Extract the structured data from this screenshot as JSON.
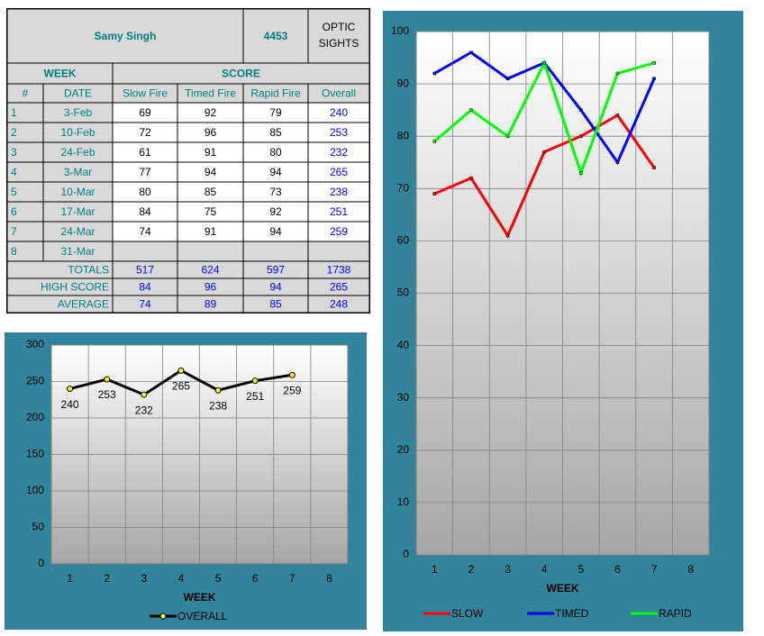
{
  "table": {
    "name": "Samy Singh",
    "id": "4453",
    "sights": "OPTIC SIGHTS",
    "group_headers": [
      "WEEK",
      "SCORE"
    ],
    "columns": [
      "#",
      "DATE",
      "Slow Fire",
      "Timed Fire",
      "Rapid Fire",
      "Overall"
    ],
    "rows": [
      [
        1,
        "3-Feb",
        69,
        92,
        79,
        240
      ],
      [
        2,
        "10-Feb",
        72,
        96,
        85,
        253
      ],
      [
        3,
        "24-Feb",
        61,
        91,
        80,
        232
      ],
      [
        4,
        "3-Mar",
        77,
        94,
        94,
        265
      ],
      [
        5,
        "10-Mar",
        80,
        85,
        73,
        238
      ],
      [
        6,
        "17-Mar",
        84,
        75,
        92,
        251
      ],
      [
        7,
        "24-Mar",
        74,
        91,
        94,
        259
      ],
      [
        8,
        "31-Mar"
      ]
    ],
    "summary": [
      [
        "TOTALS",
        517,
        624,
        597,
        1738
      ],
      [
        "HIGH SCORE",
        84,
        96,
        94,
        265
      ],
      [
        "AVERAGE",
        74,
        89,
        85,
        248
      ]
    ]
  },
  "chart_data": [
    {
      "type": "line",
      "xlabel": "WEEK",
      "categories": [
        1,
        2,
        3,
        4,
        5,
        6,
        7,
        8
      ],
      "series": [
        {
          "name": "OVERALL",
          "color": "#000000",
          "marker_color": "#ffff00",
          "values": [
            240,
            253,
            232,
            265,
            238,
            251,
            259,
            null
          ]
        }
      ],
      "data_labels": true,
      "ylim": [
        0,
        300
      ],
      "yticks": [
        0,
        50,
        100,
        150,
        200,
        250,
        300
      ],
      "grid": true
    },
    {
      "type": "line",
      "xlabel": "WEEK",
      "categories": [
        1,
        2,
        3,
        4,
        5,
        6,
        7,
        8
      ],
      "series": [
        {
          "name": "SLOW",
          "color": "#ff0000",
          "values": [
            69,
            72,
            61,
            77,
            80,
            84,
            74,
            null
          ]
        },
        {
          "name": "TIMED",
          "color": "#0000ff",
          "values": [
            92,
            96,
            91,
            94,
            85,
            75,
            91,
            null
          ]
        },
        {
          "name": "RAPID",
          "color": "#00ff00",
          "values": [
            79,
            85,
            80,
            94,
            73,
            92,
            94,
            null
          ]
        }
      ],
      "data_labels": false,
      "ylim": [
        0,
        100
      ],
      "yticks": [
        0,
        10,
        20,
        30,
        40,
        50,
        60,
        70,
        80,
        90,
        100
      ],
      "grid": true
    }
  ]
}
